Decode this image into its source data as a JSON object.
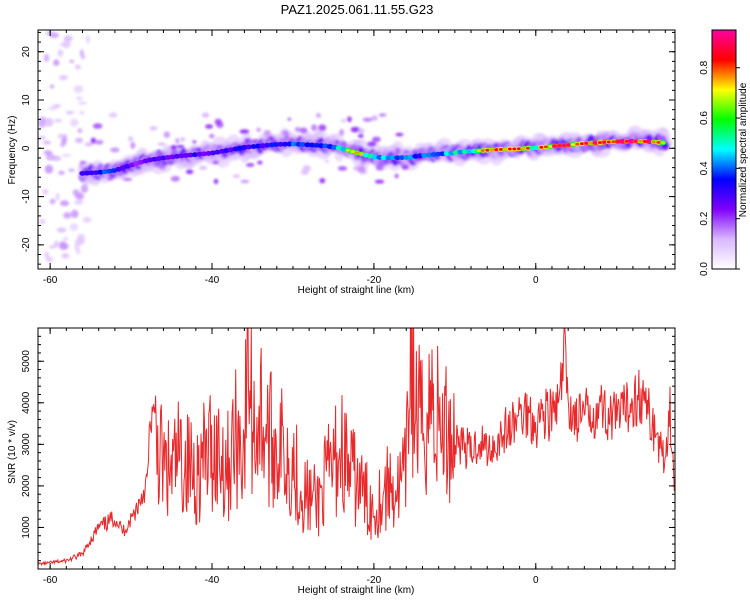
{
  "page": {
    "title": "PAZ1.2025.061.11.55.G23"
  },
  "chart_data": [
    {
      "type": "heatmap",
      "title": "PAZ1.2025.061.11.55.G23",
      "xlabel": "Height of straight line (km)",
      "ylabel": "Frequency (Hz)",
      "xlim": [
        -61.5,
        17.2
      ],
      "ylim": [
        -25,
        24.5
      ],
      "xticks": [
        -60,
        -40,
        -20,
        0
      ],
      "yticks": [
        -20,
        -10,
        0,
        10,
        20
      ],
      "colorbar": {
        "label": "Normalized spectral amplitude",
        "range": [
          0,
          0.95
        ],
        "ticks": [
          "0.0",
          "0.2",
          "0.4",
          "0.6",
          "0.8"
        ],
        "tick_values": [
          0.0,
          0.2,
          0.4,
          0.6,
          0.8
        ],
        "colormap": [
          "#ffffff",
          "#d9b8ff",
          "#8000ff",
          "#0000ff",
          "#00ffff",
          "#00ff00",
          "#ffff00",
          "#ff0000",
          "#ff00a0"
        ]
      },
      "ridge": {
        "x": [
          -56,
          -54,
          -52,
          -50,
          -48,
          -46,
          -44,
          -42,
          -40,
          -38,
          -36,
          -34,
          -32,
          -30,
          -28,
          -26,
          -24,
          -22,
          -20,
          -18,
          -16,
          -14,
          -12,
          -10,
          -8,
          -6,
          -4,
          -2,
          0,
          2,
          4,
          6,
          8,
          10,
          12,
          14,
          16
        ],
        "y": [
          -5.2,
          -5.0,
          -4.6,
          -3.5,
          -2.5,
          -2.0,
          -1.6,
          -1.3,
          -1.0,
          -0.4,
          0.2,
          0.5,
          0.8,
          0.9,
          0.7,
          0.5,
          0.0,
          -1.0,
          -1.8,
          -2.0,
          -1.9,
          -1.5,
          -1.2,
          -0.9,
          -0.6,
          -0.4,
          -0.2,
          -0.1,
          0.1,
          0.4,
          0.7,
          1.0,
          1.2,
          1.4,
          1.5,
          1.4,
          1.1
        ],
        "amplitude": [
          0.35,
          0.45,
          0.4,
          0.3,
          0.3,
          0.35,
          0.3,
          0.35,
          0.3,
          0.35,
          0.4,
          0.35,
          0.4,
          0.45,
          0.4,
          0.45,
          0.6,
          0.7,
          0.6,
          0.45,
          0.45,
          0.45,
          0.5,
          0.55,
          0.65,
          0.75,
          0.8,
          0.75,
          0.7,
          0.8,
          0.85,
          0.8,
          0.85,
          0.9,
          0.95,
          0.9,
          0.8
        ]
      }
    },
    {
      "type": "line",
      "xlabel": "Height of straight line (km)",
      "ylabel": "SNR (10 * v/v)",
      "xlim": [
        -61.5,
        17.2
      ],
      "ylim": [
        0,
        5800
      ],
      "xticks": [
        -60,
        -40,
        -20,
        0
      ],
      "yticks": [
        1000,
        2000,
        3000,
        4000,
        5000
      ],
      "color": "#e8282a",
      "x": [
        -61.5,
        -60,
        -58,
        -56,
        -55,
        -54,
        -53,
        -52,
        -51,
        -50,
        -49,
        -48,
        -47.5,
        -47,
        -46.5,
        -46,
        -45,
        -44,
        -43,
        -42,
        -41,
        -40,
        -39,
        -38,
        -37,
        -36,
        -35.5,
        -35,
        -34,
        -33,
        -32,
        -31,
        -30,
        -29,
        -28,
        -27,
        -26,
        -25,
        -24,
        -23,
        -22,
        -21,
        -20,
        -19,
        -18,
        -17,
        -16,
        -15.5,
        -15,
        -14,
        -13,
        -12,
        -11,
        -10,
        -9,
        -8,
        -7,
        -6,
        -5,
        -4,
        -3,
        -2,
        -1,
        0,
        1,
        2,
        3,
        3.5,
        4,
        5,
        6,
        7,
        8,
        9,
        10,
        11,
        12,
        13,
        14,
        15,
        16,
        16.5,
        17.2
      ],
      "y": [
        120,
        150,
        200,
        350,
        700,
        1000,
        1100,
        1250,
        900,
        1200,
        1600,
        2100,
        3850,
        3300,
        2800,
        2400,
        2300,
        2700,
        2500,
        2300,
        2600,
        2900,
        2800,
        2500,
        3200,
        3000,
        5400,
        3300,
        3800,
        3100,
        3000,
        2800,
        2600,
        1900,
        1700,
        1600,
        2100,
        2500,
        2900,
        2300,
        2100,
        1700,
        1400,
        1800,
        2000,
        1900,
        2300,
        5800,
        3900,
        3300,
        4100,
        3500,
        3300,
        3200,
        3000,
        2800,
        3100,
        2900,
        3000,
        3300,
        3400,
        3700,
        3800,
        3500,
        3800,
        3700,
        4000,
        5300,
        4000,
        3600,
        3700,
        3800,
        3900,
        3700,
        3600,
        3800,
        4100,
        4200,
        3700,
        3200,
        2500,
        4150,
        1800
      ]
    }
  ]
}
